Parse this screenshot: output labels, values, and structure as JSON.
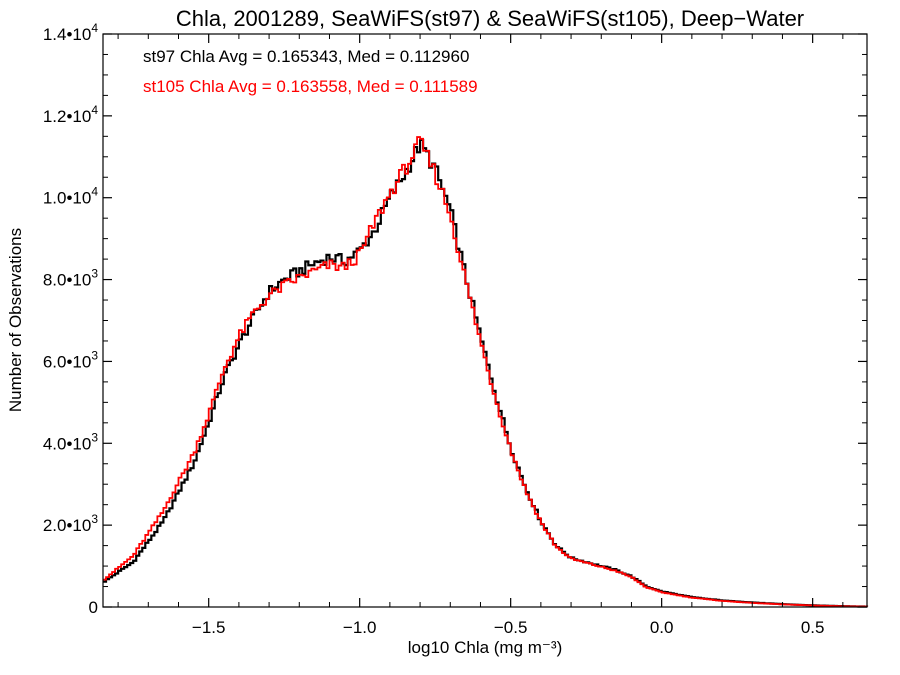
{
  "chart_data": {
    "type": "line",
    "title": "Chla, 2001289, SeaWiFS(st97) & SeaWiFS(st105), Deep−Water",
    "xlabel": "log10 Chla (mg m⁻³)",
    "ylabel": "Number of Observations",
    "xlim": [
      -1.85,
      0.68
    ],
    "ylim": [
      0,
      14000
    ],
    "x_ticks": [
      {
        "value": -1.5,
        "label": "−1.5"
      },
      {
        "value": -1.0,
        "label": "−1.0"
      },
      {
        "value": -0.5,
        "label": "−0.5"
      },
      {
        "value": 0.0,
        "label": "0.0"
      },
      {
        "value": 0.5,
        "label": "0.5"
      }
    ],
    "y_ticks": [
      {
        "value": 0,
        "mant": "0",
        "exp": ""
      },
      {
        "value": 2000,
        "mant": "2.0•10",
        "exp": "3"
      },
      {
        "value": 4000,
        "mant": "4.0•10",
        "exp": "3"
      },
      {
        "value": 6000,
        "mant": "6.0•10",
        "exp": "3"
      },
      {
        "value": 8000,
        "mant": "8.0•10",
        "exp": "3"
      },
      {
        "value": 10000,
        "mant": "1.0•10",
        "exp": "4"
      },
      {
        "value": 12000,
        "mant": "1.2•10",
        "exp": "4"
      },
      {
        "value": 14000,
        "mant": "1.4•10",
        "exp": "4"
      }
    ],
    "grid": false,
    "step": 0.01,
    "series": [
      {
        "name": "st97",
        "color": "#000000",
        "annotation": "st97 Chla Avg = 0.165343, Med = 0.112960",
        "points": [
          [
            -1.85,
            600
          ],
          [
            -1.75,
            1100
          ],
          [
            -1.65,
            2100
          ],
          [
            -1.55,
            3500
          ],
          [
            -1.5,
            4500
          ],
          [
            -1.45,
            5600
          ],
          [
            -1.4,
            6400
          ],
          [
            -1.35,
            7100
          ],
          [
            -1.3,
            7700
          ],
          [
            -1.25,
            8000
          ],
          [
            -1.2,
            8200
          ],
          [
            -1.15,
            8400
          ],
          [
            -1.1,
            8550
          ],
          [
            -1.05,
            8450
          ],
          [
            -1.0,
            8700
          ],
          [
            -0.95,
            9200
          ],
          [
            -0.9,
            10000
          ],
          [
            -0.85,
            10600
          ],
          [
            -0.8,
            11300
          ],
          [
            -0.78,
            11100
          ],
          [
            -0.75,
            10700
          ],
          [
            -0.7,
            9700
          ],
          [
            -0.65,
            8100
          ],
          [
            -0.6,
            6600
          ],
          [
            -0.55,
            5200
          ],
          [
            -0.5,
            3900
          ],
          [
            -0.45,
            2900
          ],
          [
            -0.4,
            2100
          ],
          [
            -0.35,
            1500
          ],
          [
            -0.3,
            1200
          ],
          [
            -0.25,
            1100
          ],
          [
            -0.2,
            1000
          ],
          [
            -0.15,
            900
          ],
          [
            -0.1,
            750
          ],
          [
            -0.05,
            500
          ],
          [
            0.0,
            380
          ],
          [
            0.1,
            240
          ],
          [
            0.2,
            160
          ],
          [
            0.3,
            110
          ],
          [
            0.4,
            70
          ],
          [
            0.5,
            40
          ],
          [
            0.6,
            20
          ],
          [
            0.68,
            10
          ]
        ]
      },
      {
        "name": "st105",
        "color": "#ff0000",
        "annotation": "st105 Chla Avg = 0.163558, Med = 0.111589",
        "points": [
          [
            -1.85,
            650
          ],
          [
            -1.75,
            1250
          ],
          [
            -1.65,
            2350
          ],
          [
            -1.55,
            3750
          ],
          [
            -1.5,
            4700
          ],
          [
            -1.45,
            5800
          ],
          [
            -1.4,
            6600
          ],
          [
            -1.35,
            7200
          ],
          [
            -1.3,
            7600
          ],
          [
            -1.25,
            7850
          ],
          [
            -1.2,
            8050
          ],
          [
            -1.15,
            8200
          ],
          [
            -1.1,
            8350
          ],
          [
            -1.05,
            8300
          ],
          [
            -1.0,
            8600
          ],
          [
            -0.95,
            9400
          ],
          [
            -0.9,
            10100
          ],
          [
            -0.85,
            10700
          ],
          [
            -0.8,
            11350
          ],
          [
            -0.78,
            11050
          ],
          [
            -0.75,
            10600
          ],
          [
            -0.7,
            9600
          ],
          [
            -0.65,
            8000
          ],
          [
            -0.6,
            6500
          ],
          [
            -0.55,
            5100
          ],
          [
            -0.5,
            3850
          ],
          [
            -0.45,
            2850
          ],
          [
            -0.4,
            2080
          ],
          [
            -0.35,
            1480
          ],
          [
            -0.3,
            1180
          ],
          [
            -0.25,
            1080
          ],
          [
            -0.2,
            980
          ],
          [
            -0.15,
            880
          ],
          [
            -0.1,
            730
          ],
          [
            -0.05,
            480
          ],
          [
            0.0,
            360
          ],
          [
            0.1,
            230
          ],
          [
            0.2,
            150
          ],
          [
            0.3,
            100
          ],
          [
            0.4,
            65
          ],
          [
            0.5,
            38
          ],
          [
            0.6,
            18
          ],
          [
            0.68,
            10
          ]
        ]
      }
    ]
  }
}
